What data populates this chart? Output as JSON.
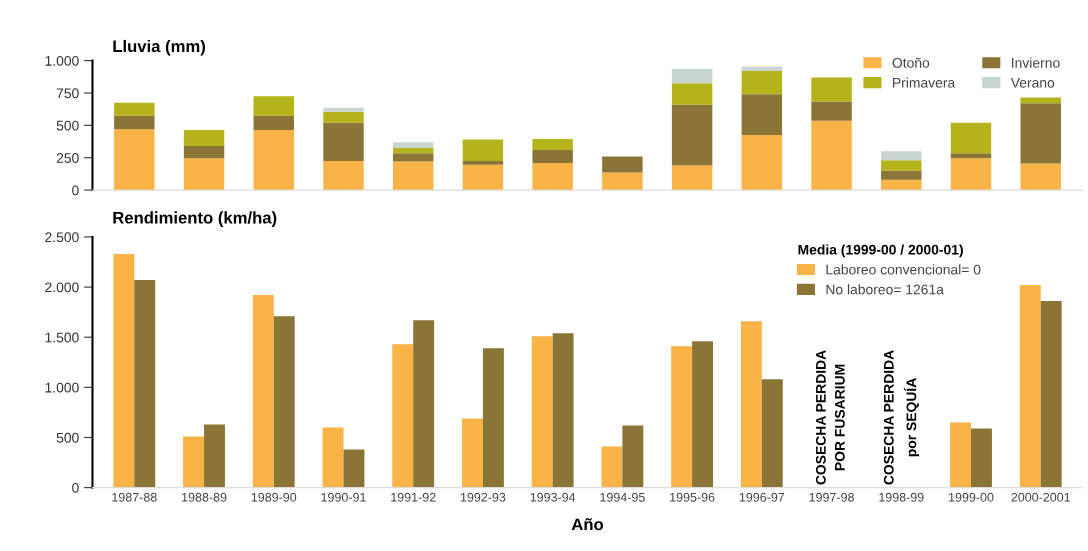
{
  "chart_data": [
    {
      "type": "bar",
      "title": "Lluvia (mm)",
      "stacked": true,
      "legend": "top right",
      "categories": [
        null,
        null,
        null,
        null,
        null,
        null,
        null,
        null,
        null,
        null,
        null,
        null,
        null,
        null
      ],
      "ylim": [
        0,
        1000
      ],
      "yticks": [
        0,
        250,
        500,
        750,
        {
          "value": 1000,
          "label": "1.000"
        }
      ],
      "series": [
        {
          "name": "Otoño",
          "color": "#f9b347",
          "values": [
            470,
            245,
            465,
            225,
            220,
            195,
            210,
            135,
            190,
            425,
            535,
            80,
            245,
            205
          ]
        },
        {
          "name": "Invierno",
          "color": "#8a7436",
          "values": [
            105,
            95,
            110,
            295,
            65,
            30,
            100,
            125,
            470,
            315,
            150,
            70,
            40,
            465
          ]
        },
        {
          "name": "Primavera",
          "color": "#b5b31c",
          "values": [
            100,
            125,
            150,
            85,
            40,
            165,
            85,
            0,
            165,
            180,
            185,
            80,
            235,
            45
          ]
        },
        {
          "name": "Verano",
          "color": "#c9d6cf",
          "values": [
            0,
            0,
            0,
            30,
            45,
            0,
            0,
            0,
            110,
            35,
            0,
            70,
            0,
            0
          ]
        }
      ]
    },
    {
      "type": "bar",
      "title": "Rendimiento (km/ha)",
      "xlabel": "Año",
      "legend": "top right",
      "legend_title": "Media (1999-00 / 2000-01)",
      "categories": [
        "1987-88",
        "1988-89",
        "1989-90",
        "1990-91",
        "1991-92",
        "1992-93",
        "1993-94",
        "1994-95",
        "1995-96",
        "1996-97",
        "1997-98",
        "1998-99",
        "1999-00",
        "2000-2001"
      ],
      "ylim": [
        0,
        2500
      ],
      "yticks": [
        0,
        500,
        {
          "value": 1000,
          "label": "1.000"
        },
        {
          "value": 1500,
          "label": "1.500"
        },
        {
          "value": 2000,
          "label": "2.000"
        },
        {
          "value": 2500,
          "label": "2.500"
        }
      ],
      "series": [
        {
          "name": "Laboreo convencional= 0",
          "color": "#f9b347",
          "values": [
            2330,
            510,
            1920,
            600,
            1430,
            690,
            1510,
            410,
            1410,
            1660,
            null,
            null,
            650,
            2020
          ]
        },
        {
          "name": "No laboreo= 1261a",
          "color": "#8a7436",
          "values": [
            2070,
            630,
            1710,
            380,
            1670,
            1390,
            1540,
            620,
            1460,
            1080,
            null,
            null,
            590,
            1860
          ]
        }
      ],
      "annotations": [
        "COSECHA PERDIDA\nPOR FUSARIUM",
        "COSECHA PERDIDA\npor SEQUÍA"
      ]
    }
  ]
}
